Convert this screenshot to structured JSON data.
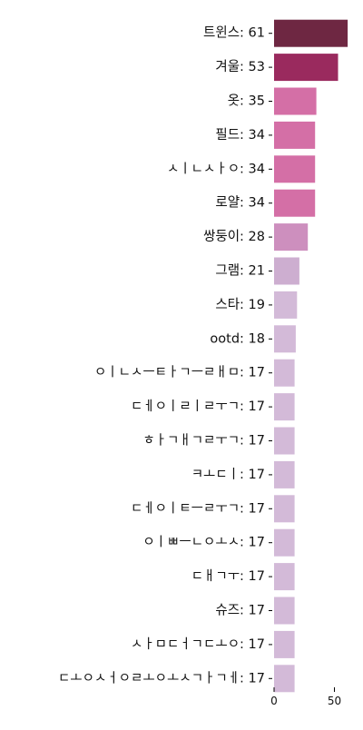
{
  "chart_data": {
    "type": "bar",
    "orientation": "horizontal",
    "categories": [
      "트윈스: 61",
      "겨울: 53",
      "옷: 35",
      "필드: 34",
      "ㅅㅣㄴㅅㅏㅇ: 34",
      "로얄: 34",
      "쌍둥이: 28",
      "그램: 21",
      "스타: 19",
      "ootd: 18",
      "ㅇㅣㄴㅅㅡㅌㅏㄱㅡㄹㅐㅁ: 17",
      "ㄷㅔㅇㅣㄹㅣㄹㅜㄱ: 17",
      "ㅎㅏㄱㅐㄱㄹㅜㄱ: 17",
      "ㅋㅗㄷㅣ: 17",
      "ㄷㅔㅇㅣㅌㅡㄹㅜㄱ: 17",
      "ㅇㅣㅃㅡㄴㅇㅗㅅ: 17",
      "ㄷㅐㄱㅜ: 17",
      "슈즈: 17",
      "ㅅㅏㅁㄷㅓㄱㄷㅗㅇ: 17",
      "ㄷㅗㅇㅅㅓㅇㄹㅗㅇㅗㅅㄱㅏㄱㅔ: 17"
    ],
    "values": [
      61,
      53,
      35,
      34,
      34,
      34,
      28,
      21,
      19,
      18,
      17,
      17,
      17,
      17,
      17,
      17,
      17,
      17,
      17,
      17
    ],
    "colors": [
      "#6e2742",
      "#9a2a5e",
      "#d46fa6",
      "#d46fa6",
      "#d46fa6",
      "#d46fa6",
      "#cd8fbe",
      "#cdaed0",
      "#d3bad8",
      "#d3bad8",
      "#d3bad8",
      "#d3bad8",
      "#d3bad8",
      "#d3bad8",
      "#d3bad8",
      "#d3bad8",
      "#d3bad8",
      "#d3bad8",
      "#d3bad8",
      "#d3bad8"
    ],
    "x_ticks": [
      0,
      50
    ],
    "xlim": [
      0,
      64
    ],
    "title": "",
    "xlabel": "",
    "ylabel": "",
    "grid": false,
    "legend": "none"
  }
}
